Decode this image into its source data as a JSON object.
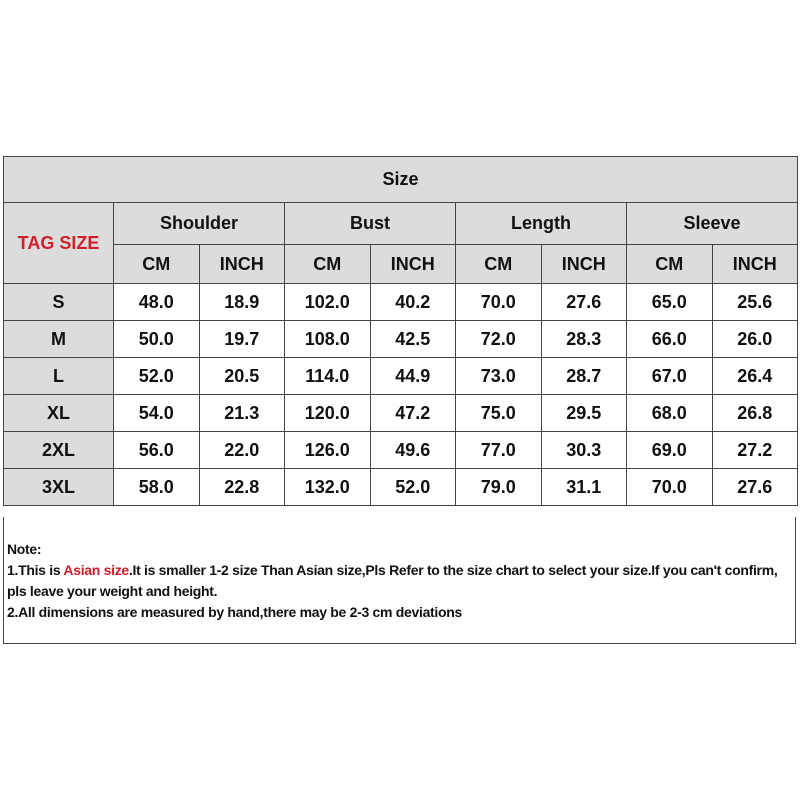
{
  "table": {
    "title": "Size",
    "tag_size_label": "TAG SIZE",
    "groups": [
      "Shoulder",
      "Bust",
      "Length",
      "Sleeve"
    ],
    "units": [
      "CM",
      "INCH"
    ],
    "rows": [
      {
        "size": "S",
        "values": [
          "48.0",
          "18.9",
          "102.0",
          "40.2",
          "70.0",
          "27.6",
          "65.0",
          "25.6"
        ]
      },
      {
        "size": "M",
        "values": [
          "50.0",
          "19.7",
          "108.0",
          "42.5",
          "72.0",
          "28.3",
          "66.0",
          "26.0"
        ]
      },
      {
        "size": "L",
        "values": [
          "52.0",
          "20.5",
          "114.0",
          "44.9",
          "73.0",
          "28.7",
          "67.0",
          "26.4"
        ]
      },
      {
        "size": "XL",
        "values": [
          "54.0",
          "21.3",
          "120.0",
          "47.2",
          "75.0",
          "29.5",
          "68.0",
          "26.8"
        ]
      },
      {
        "size": "2XL",
        "values": [
          "56.0",
          "22.0",
          "126.0",
          "49.6",
          "77.0",
          "30.3",
          "69.0",
          "27.2"
        ]
      },
      {
        "size": "3XL",
        "values": [
          "58.0",
          "22.8",
          "132.0",
          "52.0",
          "79.0",
          "31.1",
          "70.0",
          "27.6"
        ]
      }
    ]
  },
  "note": {
    "heading": "Note:",
    "line1_prefix": "1.This is ",
    "line1_highlight": "Asian size",
    "line1_suffix": ".It is smaller 1-2 size Than Asian size,Pls Refer to the size chart to select your size.If you can't confirm, pls leave your weight and height.",
    "line2": "2.All dimensions are measured by hand,there may be 2-3 cm deviations"
  },
  "colors": {
    "tag_label": "#d0202a",
    "header_bg": "#dcdcdc",
    "highlight": "#c8202a"
  }
}
